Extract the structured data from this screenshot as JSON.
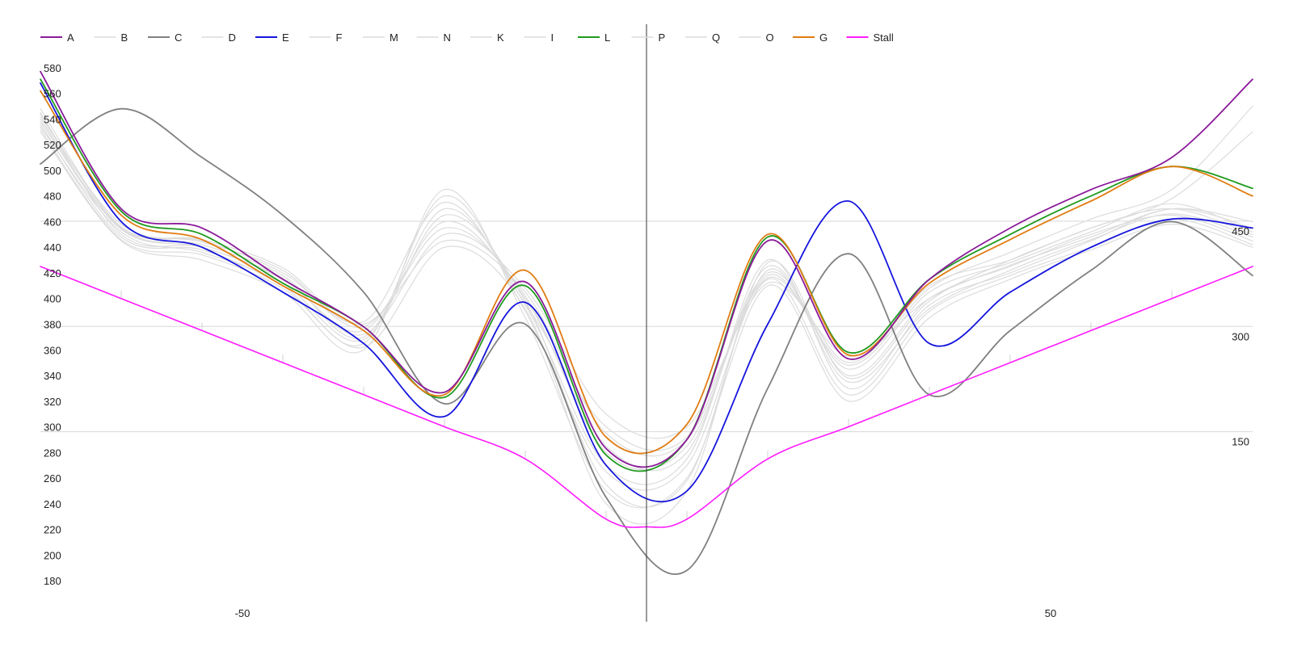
{
  "chart_data": {
    "type": "line",
    "title": "",
    "xlabel": "",
    "ylabel": "",
    "xlim": [
      -75,
      75
    ],
    "ylim": [
      170,
      590
    ],
    "right_ylim": [
      0,
      535
    ],
    "x_ticks": [
      -50,
      50
    ],
    "y_ticks": [
      180,
      200,
      220,
      240,
      260,
      280,
      300,
      320,
      340,
      360,
      380,
      400,
      420,
      440,
      460,
      480,
      500,
      520,
      540,
      560,
      580
    ],
    "right_ticks": [
      150,
      300,
      450
    ],
    "legend_position": "top",
    "legend": [
      "A",
      "B",
      "C",
      "D",
      "E",
      "F",
      "M",
      "N",
      "K",
      "I",
      "L",
      "P",
      "Q",
      "O",
      "G",
      "Stall"
    ],
    "series": [
      {
        "name": "B",
        "color": "#dcdcdc",
        "highlight": false,
        "x": [
          -75,
          -65,
          -55,
          -45,
          -35,
          -25,
          -15,
          -5,
          5,
          15,
          25,
          35,
          45,
          55,
          65,
          75
        ],
        "y": [
          540,
          455,
          445,
          420,
          380,
          445,
          405,
          295,
          290,
          420,
          350,
          410,
          430,
          455,
          470,
          450
        ]
      },
      {
        "name": "D",
        "color": "#dcdcdc",
        "highlight": false,
        "x": [
          -75,
          -65,
          -55,
          -45,
          -35,
          -25,
          -15,
          -5,
          5,
          15,
          25,
          35,
          45,
          55,
          65,
          75
        ],
        "y": [
          545,
          450,
          440,
          415,
          375,
          460,
          400,
          285,
          280,
          425,
          340,
          400,
          425,
          450,
          465,
          445
        ]
      },
      {
        "name": "F",
        "color": "#dcdcdc",
        "highlight": false,
        "x": [
          -75,
          -65,
          -55,
          -45,
          -35,
          -25,
          -15,
          -5,
          5,
          15,
          25,
          35,
          45,
          55,
          65,
          75
        ],
        "y": [
          548,
          455,
          442,
          418,
          370,
          470,
          395,
          270,
          275,
          430,
          330,
          395,
          420,
          445,
          470,
          455
        ]
      },
      {
        "name": "M",
        "color": "#dcdcdc",
        "highlight": false,
        "x": [
          -75,
          -65,
          -55,
          -45,
          -35,
          -25,
          -15,
          -5,
          5,
          15,
          25,
          35,
          45,
          55,
          65,
          75
        ],
        "y": [
          536,
          448,
          438,
          410,
          365,
          480,
          390,
          265,
          270,
          415,
          325,
          390,
          418,
          440,
          462,
          442
        ]
      },
      {
        "name": "N",
        "color": "#dcdcdc",
        "highlight": false,
        "x": [
          -75,
          -65,
          -55,
          -45,
          -35,
          -25,
          -15,
          -5,
          5,
          15,
          25,
          35,
          45,
          55,
          65,
          75
        ],
        "y": [
          530,
          445,
          430,
          405,
          360,
          485,
          385,
          250,
          260,
          410,
          320,
          385,
          415,
          438,
          458,
          440
        ]
      },
      {
        "name": "K",
        "color": "#dcdcdc",
        "highlight": false,
        "x": [
          -75,
          -65,
          -55,
          -45,
          -35,
          -25,
          -15,
          -5,
          5,
          15,
          25,
          35,
          45,
          55,
          65,
          75
        ],
        "y": [
          534,
          452,
          436,
          412,
          368,
          465,
          398,
          255,
          258,
          422,
          335,
          392,
          422,
          446,
          466,
          448
        ]
      },
      {
        "name": "I",
        "color": "#dcdcdc",
        "highlight": false,
        "x": [
          -75,
          -65,
          -55,
          -45,
          -35,
          -25,
          -15,
          -5,
          5,
          15,
          25,
          35,
          45,
          55,
          65,
          75
        ],
        "y": [
          542,
          458,
          444,
          422,
          378,
          455,
          402,
          280,
          285,
          418,
          345,
          405,
          428,
          452,
          474,
          452
        ]
      },
      {
        "name": "P",
        "color": "#dcdcdc",
        "highlight": false,
        "x": [
          -75,
          -65,
          -55,
          -45,
          -35,
          -25,
          -15,
          -5,
          5,
          15,
          25,
          35,
          45,
          55,
          65,
          75
        ],
        "y": [
          538,
          454,
          440,
          416,
          372,
          450,
          408,
          310,
          300,
          412,
          355,
          400,
          426,
          448,
          470,
          460
        ]
      },
      {
        "name": "Q",
        "color": "#dcdcdc",
        "highlight": false,
        "x": [
          -75,
          -65,
          -55,
          -45,
          -35,
          -25,
          -15,
          -5,
          5,
          15,
          25,
          35,
          45,
          55,
          65,
          75
        ],
        "y": [
          532,
          446,
          434,
          408,
          362,
          440,
          392,
          240,
          250,
          428,
          338,
          398,
          430,
          455,
          478,
          530
        ]
      },
      {
        "name": "O",
        "color": "#dcdcdc",
        "highlight": false,
        "x": [
          -75,
          -65,
          -55,
          -45,
          -35,
          -25,
          -15,
          -5,
          5,
          15,
          25,
          35,
          45,
          55,
          65,
          75
        ],
        "y": [
          544,
          456,
          446,
          424,
          382,
          475,
          396,
          300,
          292,
          416,
          348,
          408,
          436,
          462,
          485,
          550
        ]
      },
      {
        "name": "C",
        "color": "#808080",
        "highlight": true,
        "x": [
          -75,
          -65,
          -55,
          -45,
          -35,
          -25,
          -15,
          -5,
          5,
          15,
          25,
          35,
          45,
          55,
          65,
          75
        ],
        "y": [
          505,
          548,
          510,
          465,
          405,
          318,
          380,
          245,
          188,
          330,
          435,
          325,
          375,
          422,
          460,
          418
        ]
      },
      {
        "name": "E",
        "color": "#1515dd",
        "highlight": true,
        "x": [
          -75,
          -65,
          -55,
          -45,
          -35,
          -25,
          -15,
          -5,
          5,
          15,
          25,
          35,
          45,
          55,
          65,
          75
        ],
        "y": [
          568,
          460,
          440,
          405,
          365,
          308,
          397,
          270,
          250,
          380,
          476,
          365,
          405,
          440,
          462,
          455
        ]
      },
      {
        "name": "L",
        "color": "#1f9a1f",
        "highlight": true,
        "x": [
          -75,
          -65,
          -55,
          -45,
          -35,
          -25,
          -15,
          -5,
          5,
          15,
          25,
          35,
          45,
          55,
          65,
          75
        ],
        "y": [
          571,
          468,
          450,
          412,
          378,
          323,
          410,
          278,
          290,
          448,
          358,
          415,
          450,
          480,
          503,
          486
        ]
      },
      {
        "name": "G",
        "color": "#e07c12",
        "highlight": true,
        "x": [
          -75,
          -65,
          -55,
          -45,
          -35,
          -25,
          -15,
          -5,
          5,
          15,
          25,
          35,
          45,
          55,
          65,
          75
        ],
        "y": [
          562,
          465,
          446,
          410,
          375,
          325,
          422,
          292,
          302,
          450,
          356,
          412,
          446,
          476,
          503,
          480
        ]
      },
      {
        "name": "A",
        "color": "#8b1a9a",
        "highlight": true,
        "x": [
          -75,
          -65,
          -55,
          -45,
          -35,
          -25,
          -15,
          -5,
          5,
          15,
          25,
          35,
          45,
          55,
          65,
          75
        ],
        "y": [
          577,
          470,
          455,
          415,
          378,
          327,
          413,
          283,
          290,
          445,
          353,
          415,
          455,
          485,
          510,
          571
        ]
      },
      {
        "name": "Stall",
        "color": "#ff1aff",
        "highlight": true,
        "x": [
          -75,
          -65,
          -55,
          -45,
          -35,
          -25,
          -15,
          -5,
          0,
          5,
          15,
          25,
          35,
          45,
          55,
          65,
          75
        ],
        "y": [
          425,
          400,
          375,
          350,
          325,
          300,
          275,
          228,
          222,
          228,
          275,
          300,
          325,
          350,
          375,
          400,
          425
        ]
      }
    ]
  }
}
